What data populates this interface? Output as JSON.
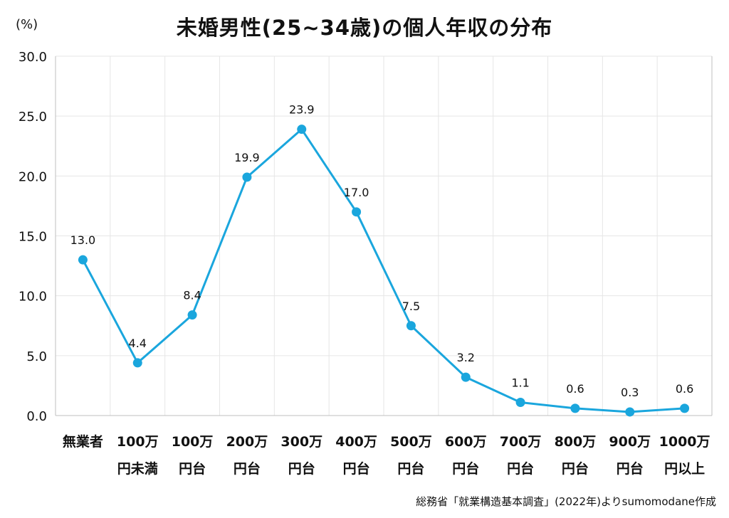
{
  "chart_data": {
    "type": "line",
    "title": "未婚男性(25~34歳)の個人年収の分布",
    "y_unit": "(%)",
    "source": "総務省「就業構造基本調査」(2022年)よりsumomodane作成",
    "categories": [
      [
        "無業者"
      ],
      [
        "100万",
        "円未満"
      ],
      [
        "100万",
        "円台"
      ],
      [
        "200万",
        "円台"
      ],
      [
        "300万",
        "円台"
      ],
      [
        "400万",
        "円台"
      ],
      [
        "500万",
        "円台"
      ],
      [
        "600万",
        "円台"
      ],
      [
        "700万",
        "円台"
      ],
      [
        "800万",
        "円台"
      ],
      [
        "900万",
        "円台"
      ],
      [
        "1000万",
        "円以上"
      ]
    ],
    "values": [
      13.0,
      4.4,
      8.4,
      19.9,
      23.9,
      17.0,
      7.5,
      3.2,
      1.1,
      0.6,
      0.3,
      0.6
    ],
    "ylim": [
      0,
      30
    ],
    "yticks": [
      "0.0",
      "5.0",
      "10.0",
      "15.0",
      "20.0",
      "25.0",
      "30.0"
    ],
    "grid": true,
    "colors": {
      "line": "#1aa6dd",
      "grid": "#e6e6e6",
      "axis": "#bfbfbf"
    }
  }
}
